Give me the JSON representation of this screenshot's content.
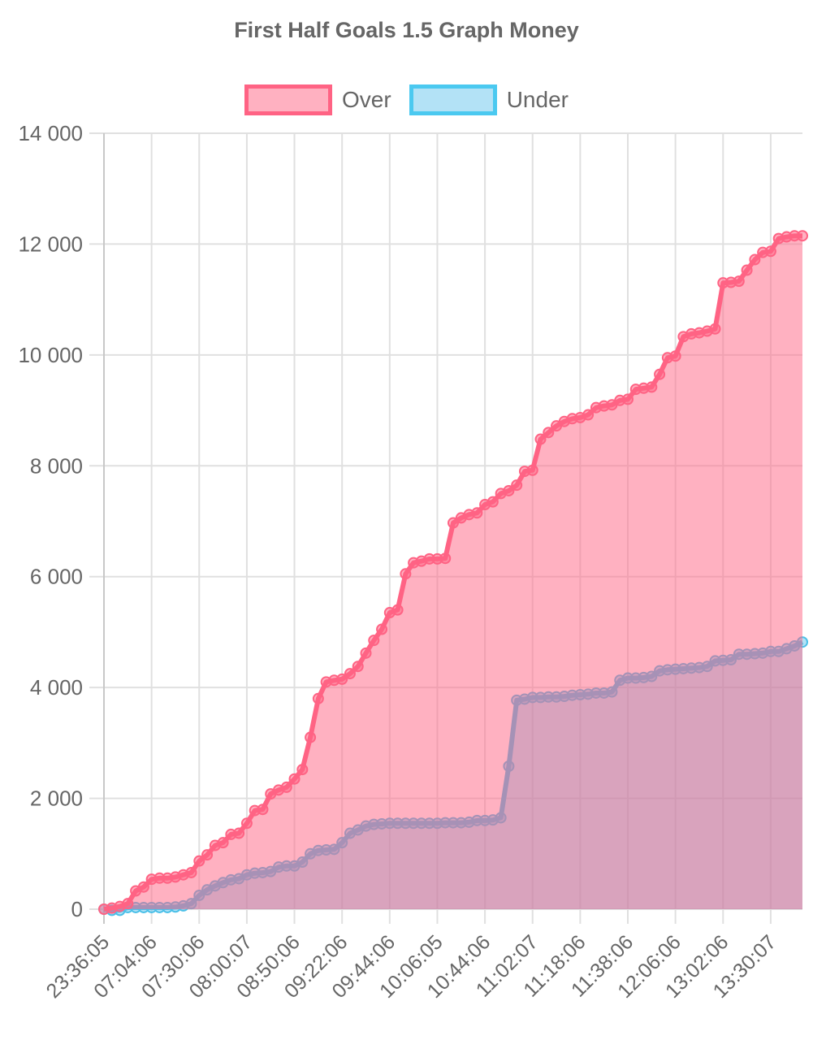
{
  "chart_data": {
    "type": "line",
    "title": "First Half Goals 1.5 Graph Money",
    "xlabel": "",
    "ylabel": "",
    "ylim": [
      0,
      14000
    ],
    "yticks": [
      "0",
      "2 000",
      "4 000",
      "6 000",
      "8 000",
      "10 000",
      "12 000",
      "14 000"
    ],
    "ytick_values": [
      0,
      2000,
      4000,
      6000,
      8000,
      10000,
      12000,
      14000
    ],
    "grid": true,
    "legend_position": "top",
    "x_tick_labels": [
      "23:36:05",
      "07:04:06",
      "07:30:06",
      "08:00:07",
      "08:50:06",
      "09:22:06",
      "09:44:06",
      "10:06:05",
      "10:44:06",
      "11:02:07",
      "11:18:06",
      "11:38:06",
      "12:06:06",
      "13:02:06",
      "13:30:07"
    ],
    "x_tick_every": 6,
    "point_count": 89,
    "series": [
      {
        "name": "Over",
        "color": "#ff6384",
        "fill": "rgba(255,99,132,0.5)",
        "values": [
          0,
          20,
          50,
          100,
          330,
          400,
          540,
          560,
          560,
          580,
          620,
          660,
          870,
          980,
          1150,
          1200,
          1350,
          1370,
          1550,
          1780,
          1800,
          2080,
          2150,
          2200,
          2350,
          2520,
          3100,
          3800,
          4100,
          4130,
          4150,
          4250,
          4380,
          4620,
          4850,
          5050,
          5350,
          5400,
          6050,
          6250,
          6280,
          6320,
          6320,
          6330,
          6970,
          7060,
          7120,
          7150,
          7300,
          7350,
          7500,
          7550,
          7650,
          7900,
          7920,
          8480,
          8600,
          8720,
          8800,
          8850,
          8870,
          8920,
          9050,
          9080,
          9100,
          9180,
          9200,
          9380,
          9400,
          9420,
          9650,
          9950,
          9980,
          10330,
          10380,
          10400,
          10430,
          10470,
          11300,
          11310,
          11330,
          11530,
          11720,
          11850,
          11870,
          12100,
          12130,
          12150,
          12150
        ]
      },
      {
        "name": "Under",
        "color": "#4bc0e8",
        "fill": "rgba(86,190,235,0.45)",
        "values": [
          0,
          -20,
          -20,
          30,
          30,
          30,
          30,
          30,
          30,
          40,
          60,
          100,
          250,
          350,
          420,
          480,
          530,
          550,
          620,
          650,
          660,
          680,
          760,
          780,
          780,
          850,
          1000,
          1060,
          1070,
          1080,
          1200,
          1370,
          1430,
          1500,
          1530,
          1540,
          1550,
          1550,
          1550,
          1550,
          1550,
          1550,
          1550,
          1560,
          1560,
          1560,
          1570,
          1600,
          1600,
          1610,
          1650,
          2580,
          3770,
          3790,
          3820,
          3820,
          3830,
          3830,
          3840,
          3860,
          3870,
          3880,
          3900,
          3900,
          3920,
          4130,
          4170,
          4170,
          4180,
          4200,
          4300,
          4320,
          4330,
          4340,
          4350,
          4360,
          4380,
          4480,
          4490,
          4500,
          4600,
          4600,
          4610,
          4620,
          4650,
          4650,
          4700,
          4750,
          4820
        ]
      }
    ]
  }
}
